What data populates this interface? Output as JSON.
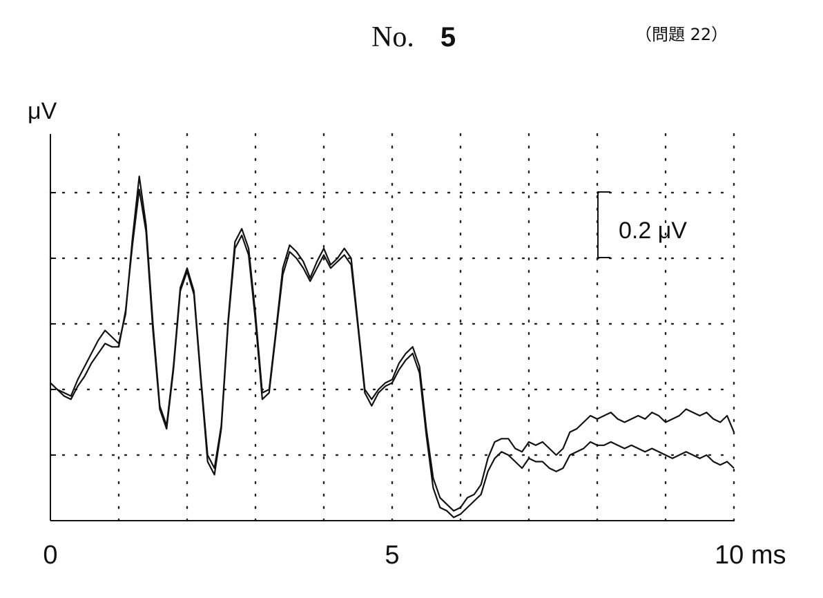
{
  "header": {
    "no_prefix": "No.",
    "no_value": "5",
    "problem_label": "（問題 22）"
  },
  "chart_data": {
    "type": "line",
    "title": "",
    "xlabel": "ms",
    "ylabel": "μV",
    "xlim": [
      0,
      10
    ],
    "x_tick_labels": [
      {
        "x": 0,
        "label": "0"
      },
      {
        "x": 5,
        "label": "5"
      },
      {
        "x": 10,
        "label": "10 ms"
      }
    ],
    "scale_bar": {
      "value": 0.2,
      "label": "0.2 μV"
    },
    "grid": "dotted",
    "series": [
      {
        "x": [
          0,
          0.1,
          0.2,
          0.3,
          0.4,
          0.5,
          0.6,
          0.7,
          0.8,
          0.9,
          1.0,
          1.1,
          1.2,
          1.3,
          1.4,
          1.5,
          1.6,
          1.7,
          1.8,
          1.9,
          2.0,
          2.1,
          2.2,
          2.3,
          2.4,
          2.5,
          2.6,
          2.7,
          2.8,
          2.9,
          3.0,
          3.1,
          3.2,
          3.3,
          3.4,
          3.5,
          3.6,
          3.7,
          3.8,
          3.9,
          4.0,
          4.1,
          4.2,
          4.3,
          4.4,
          4.5,
          4.6,
          4.7,
          4.8,
          4.9,
          5.0,
          5.1,
          5.2,
          5.3,
          5.4,
          5.5,
          5.6,
          5.7,
          5.8,
          5.9,
          6.0,
          6.1,
          6.2,
          6.3,
          6.4,
          6.5,
          6.6,
          6.7,
          6.8,
          6.9,
          7.0,
          7.1,
          7.2,
          7.3,
          7.4,
          7.5,
          7.6,
          7.7,
          7.8,
          7.9,
          8.0,
          8.1,
          8.2,
          8.3,
          8.4,
          8.5,
          8.6,
          8.7,
          8.8,
          8.9,
          9.0,
          9.1,
          9.2,
          9.3,
          9.4,
          9.5,
          9.6,
          9.7,
          9.8,
          9.9,
          10.0
        ],
        "values": [
          0.02,
          0.0,
          -0.01,
          -0.02,
          0.03,
          0.07,
          0.11,
          0.15,
          0.18,
          0.16,
          0.14,
          0.23,
          0.46,
          0.65,
          0.5,
          0.2,
          -0.05,
          -0.11,
          0.07,
          0.31,
          0.37,
          0.3,
          0.04,
          -0.2,
          -0.24,
          -0.11,
          0.21,
          0.45,
          0.49,
          0.43,
          0.23,
          -0.01,
          0.0,
          0.18,
          0.37,
          0.44,
          0.42,
          0.39,
          0.34,
          0.39,
          0.43,
          0.38,
          0.4,
          0.43,
          0.4,
          0.2,
          0.0,
          -0.03,
          0.0,
          0.02,
          0.03,
          0.08,
          0.11,
          0.13,
          0.07,
          -0.12,
          -0.27,
          -0.33,
          -0.35,
          -0.37,
          -0.36,
          -0.33,
          -0.32,
          -0.29,
          -0.21,
          -0.16,
          -0.15,
          -0.15,
          -0.18,
          -0.19,
          -0.16,
          -0.17,
          -0.16,
          -0.18,
          -0.2,
          -0.18,
          -0.13,
          -0.12,
          -0.1,
          -0.08,
          -0.09,
          -0.08,
          -0.07,
          -0.09,
          -0.1,
          -0.09,
          -0.08,
          -0.09,
          -0.07,
          -0.08,
          -0.1,
          -0.09,
          -0.08,
          -0.06,
          -0.07,
          -0.08,
          -0.07,
          -0.09,
          -0.1,
          -0.08,
          -0.13
        ]
      },
      {
        "x": [
          0,
          0.1,
          0.2,
          0.3,
          0.4,
          0.5,
          0.6,
          0.7,
          0.8,
          0.9,
          1.0,
          1.1,
          1.2,
          1.3,
          1.4,
          1.5,
          1.6,
          1.7,
          1.8,
          1.9,
          2.0,
          2.1,
          2.2,
          2.3,
          2.4,
          2.5,
          2.6,
          2.7,
          2.8,
          2.9,
          3.0,
          3.1,
          3.2,
          3.3,
          3.4,
          3.5,
          3.6,
          3.7,
          3.8,
          3.9,
          4.0,
          4.1,
          4.2,
          4.3,
          4.4,
          4.5,
          4.6,
          4.7,
          4.8,
          4.9,
          5.0,
          5.1,
          5.2,
          5.3,
          5.4,
          5.5,
          5.6,
          5.7,
          5.8,
          5.9,
          6.0,
          6.1,
          6.2,
          6.3,
          6.4,
          6.5,
          6.6,
          6.7,
          6.8,
          6.9,
          7.0,
          7.1,
          7.2,
          7.3,
          7.4,
          7.5,
          7.6,
          7.7,
          7.8,
          7.9,
          8.0,
          8.1,
          8.2,
          8.3,
          8.4,
          8.5,
          8.6,
          8.7,
          8.8,
          8.9,
          9.0,
          9.1,
          9.2,
          9.3,
          9.4,
          9.5,
          9.6,
          9.7,
          9.8,
          9.9,
          10.0
        ],
        "values": [
          0.02,
          0.0,
          -0.02,
          -0.03,
          0.01,
          0.04,
          0.08,
          0.11,
          0.14,
          0.13,
          0.13,
          0.24,
          0.44,
          0.61,
          0.48,
          0.18,
          -0.06,
          -0.12,
          0.06,
          0.3,
          0.36,
          0.29,
          0.03,
          -0.22,
          -0.26,
          -0.12,
          0.2,
          0.43,
          0.47,
          0.41,
          0.21,
          -0.03,
          -0.01,
          0.17,
          0.35,
          0.42,
          0.4,
          0.37,
          0.33,
          0.37,
          0.41,
          0.37,
          0.39,
          0.41,
          0.38,
          0.19,
          -0.01,
          -0.05,
          -0.01,
          0.01,
          0.02,
          0.06,
          0.09,
          0.11,
          0.05,
          -0.14,
          -0.3,
          -0.36,
          -0.37,
          -0.39,
          -0.38,
          -0.36,
          -0.34,
          -0.32,
          -0.25,
          -0.21,
          -0.19,
          -0.2,
          -0.22,
          -0.24,
          -0.21,
          -0.22,
          -0.22,
          -0.24,
          -0.25,
          -0.24,
          -0.2,
          -0.19,
          -0.18,
          -0.16,
          -0.17,
          -0.17,
          -0.16,
          -0.17,
          -0.18,
          -0.17,
          -0.18,
          -0.19,
          -0.18,
          -0.19,
          -0.2,
          -0.21,
          -0.2,
          -0.19,
          -0.2,
          -0.21,
          -0.2,
          -0.22,
          -0.23,
          -0.22,
          -0.24
        ]
      }
    ]
  }
}
